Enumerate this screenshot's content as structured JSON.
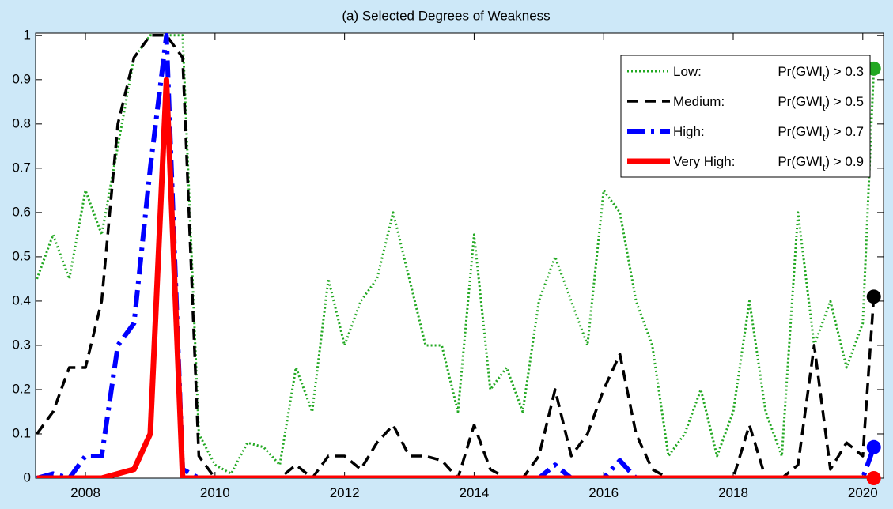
{
  "chart_data": {
    "type": "line",
    "title": "(a) Selected Degrees of Weakness",
    "x": [
      2007.25,
      2007.5,
      2007.75,
      2008.0,
      2008.25,
      2008.5,
      2008.75,
      2009.0,
      2009.25,
      2009.5,
      2009.75,
      2010.0,
      2010.25,
      2010.5,
      2010.75,
      2011.0,
      2011.25,
      2011.5,
      2011.75,
      2012.0,
      2012.25,
      2012.5,
      2012.75,
      2013.0,
      2013.25,
      2013.5,
      2013.75,
      2014.0,
      2014.25,
      2014.5,
      2014.75,
      2015.0,
      2015.25,
      2015.5,
      2015.75,
      2016.0,
      2016.25,
      2016.5,
      2016.75,
      2017.0,
      2017.25,
      2017.5,
      2017.75,
      2018.0,
      2018.25,
      2018.5,
      2018.75,
      2019.0,
      2019.25,
      2019.5,
      2019.75,
      2020.0,
      2020.17
    ],
    "series": [
      {
        "name": "Low:",
        "condition": [
          "Pr(GWI",
          "t",
          ") > 0.3"
        ],
        "color": "#22a822",
        "style": "dotted",
        "values": [
          0.45,
          0.55,
          0.45,
          0.65,
          0.55,
          0.75,
          0.95,
          1,
          1,
          1,
          0.1,
          0.03,
          0.01,
          0.08,
          0.07,
          0.03,
          0.25,
          0.15,
          0.45,
          0.3,
          0.4,
          0.45,
          0.6,
          0.45,
          0.3,
          0.3,
          0.15,
          0.55,
          0.2,
          0.25,
          0.15,
          0.4,
          0.5,
          0.4,
          0.3,
          0.65,
          0.6,
          0.4,
          0.3,
          0.05,
          0.1,
          0.2,
          0.05,
          0.15,
          0.4,
          0.15,
          0.05,
          0.6,
          0.3,
          0.4,
          0.25,
          0.35,
          0.925
        ]
      },
      {
        "name": "Medium:",
        "condition": [
          "Pr(GWI",
          "t",
          ") > 0.5"
        ],
        "color": "#000000",
        "style": "dashed",
        "values": [
          0.1,
          0.15,
          0.25,
          0.25,
          0.4,
          0.8,
          0.95,
          1,
          1,
          0.95,
          0.05,
          0,
          0,
          0,
          0,
          0,
          0.03,
          0,
          0.05,
          0.05,
          0.02,
          0.08,
          0.12,
          0.05,
          0.05,
          0.04,
          0,
          0.12,
          0.02,
          0,
          0,
          0.05,
          0.2,
          0.05,
          0.1,
          0.2,
          0.28,
          0.1,
          0.02,
          0,
          0,
          0,
          0,
          0,
          0.12,
          0,
          0,
          0.03,
          0.3,
          0.02,
          0.08,
          0.05,
          0.41
        ]
      },
      {
        "name": "High:",
        "condition": [
          "Pr(GWI",
          "t",
          ") > 0.7"
        ],
        "color": "#0000ff",
        "style": "dashdot",
        "values": [
          0,
          0.01,
          0,
          0.05,
          0.05,
          0.3,
          0.35,
          0.7,
          1,
          0.02,
          0,
          0,
          0,
          0,
          0,
          0,
          0,
          0,
          0,
          0,
          0,
          0,
          0,
          0,
          0,
          0,
          0,
          0,
          0,
          0,
          0,
          0,
          0.03,
          0,
          0,
          0,
          0.04,
          0,
          0,
          0,
          0,
          0,
          0,
          0,
          0,
          0,
          0,
          0,
          0,
          0,
          0,
          0,
          0.07
        ]
      },
      {
        "name": "Very High:",
        "condition": [
          "Pr(GWI",
          "t",
          ") > 0.9"
        ],
        "color": "#ff0000",
        "style": "solid",
        "values": [
          0,
          0,
          0,
          0,
          0,
          0.01,
          0.02,
          0.1,
          0.9,
          0,
          0,
          0,
          0,
          0,
          0,
          0,
          0,
          0,
          0,
          0,
          0,
          0,
          0,
          0,
          0,
          0,
          0,
          0,
          0,
          0,
          0,
          0,
          0,
          0,
          0,
          0,
          0,
          0,
          0,
          0,
          0,
          0,
          0,
          0,
          0,
          0,
          0,
          0,
          0,
          0,
          0,
          0,
          0
        ]
      }
    ],
    "xlim": [
      2007.23,
      2020.32
    ],
    "xticks": [
      2008,
      2010,
      2012,
      2014,
      2016,
      2018,
      2020
    ],
    "ylim": [
      0,
      1.005
    ],
    "yticks": [
      0,
      0.1,
      0.2,
      0.3,
      0.4,
      0.5,
      0.6,
      0.7,
      0.8,
      0.9,
      1
    ],
    "legend": "upper right",
    "end_markers": true
  }
}
